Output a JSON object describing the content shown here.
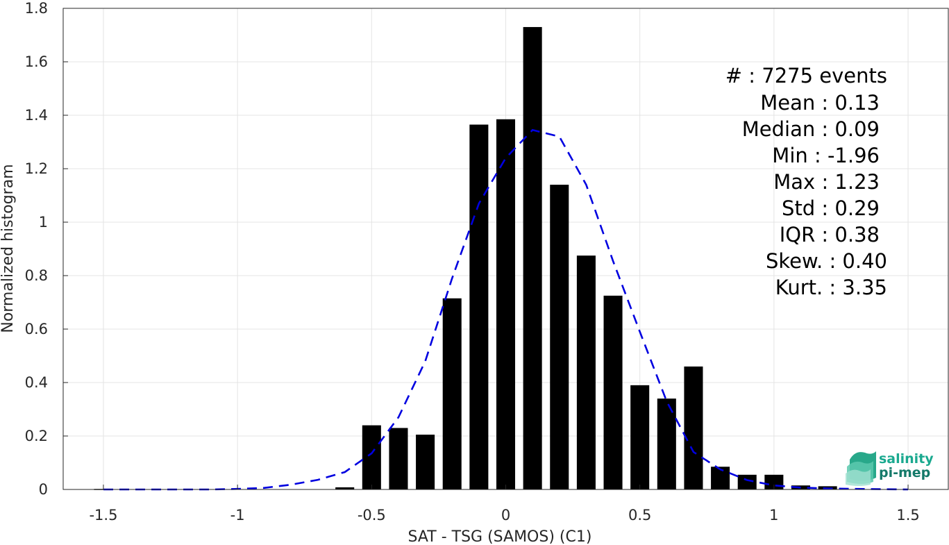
{
  "chart_data": {
    "type": "bar",
    "xlabel": "SAT - TSG (SAMOS) (C1)",
    "ylabel": "Normalized histogram",
    "xlim": [
      -1.65,
      1.65
    ],
    "ylim": [
      0,
      1.8
    ],
    "grid": true,
    "xticks": [
      "-1.5",
      "-1",
      "-0.5",
      "0",
      "0.5",
      "1",
      "1.5"
    ],
    "xtick_values": [
      -1.5,
      -1,
      -0.5,
      0,
      0.5,
      1,
      1.5
    ],
    "yticks": [
      "0",
      "0.2",
      "0.4",
      "0.6",
      "0.8",
      "1",
      "1.2",
      "1.4",
      "1.6",
      "1.8"
    ],
    "ytick_values": [
      0,
      0.2,
      0.4,
      0.6,
      0.8,
      1.0,
      1.2,
      1.4,
      1.6,
      1.8
    ],
    "bar_width": 0.07,
    "bar_color": "#000000",
    "histogram": {
      "x": [
        -1.5,
        -0.6,
        -0.5,
        -0.4,
        -0.3,
        -0.2,
        -0.1,
        0.0,
        0.1,
        0.2,
        0.3,
        0.4,
        0.5,
        0.6,
        0.7,
        0.8,
        0.9,
        1.0,
        1.1,
        1.2
      ],
      "values": [
        0.002,
        0.008,
        0.24,
        0.23,
        0.205,
        0.715,
        1.365,
        1.385,
        1.73,
        1.14,
        0.875,
        0.725,
        0.39,
        0.34,
        0.46,
        0.085,
        0.055,
        0.055,
        0.015,
        0.012
      ]
    },
    "fit_curve": {
      "style": "dashed",
      "color": "#0000e0",
      "x": [
        -1.5,
        -1.4,
        -1.3,
        -1.2,
        -1.1,
        -1.0,
        -0.9,
        -0.8,
        -0.7,
        -0.6,
        -0.5,
        -0.4,
        -0.3,
        -0.2,
        -0.1,
        0.0,
        0.1,
        0.2,
        0.3,
        0.4,
        0.5,
        0.6,
        0.7,
        0.8,
        0.9,
        1.0,
        1.1,
        1.2,
        1.3,
        1.4,
        1.5
      ],
      "y": [
        0.0,
        0.0,
        0.0,
        0.0,
        0.0,
        0.002,
        0.006,
        0.018,
        0.036,
        0.065,
        0.135,
        0.27,
        0.48,
        0.79,
        1.07,
        1.24,
        1.345,
        1.32,
        1.14,
        0.855,
        0.59,
        0.33,
        0.14,
        0.075,
        0.035,
        0.015,
        0.007,
        0.004,
        0.002,
        0.001,
        0.0
      ]
    },
    "stats": [
      "#  : 7275 events",
      "Mean : 0.13",
      "Median : 0.09",
      "Min : -1.96",
      "Max : 1.23",
      "Std : 0.29",
      "IQR : 0.38",
      "Skew. : 0.40",
      "Kurt. : 3.35"
    ]
  },
  "logo": {
    "line1": "salinity",
    "line2": "pi-mep",
    "color": "#1aa98f"
  }
}
